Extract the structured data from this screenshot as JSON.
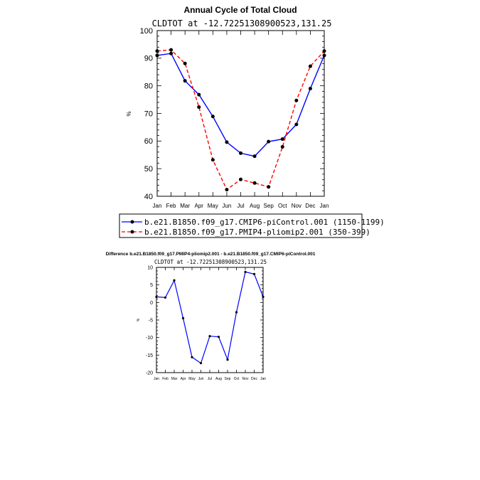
{
  "chart_data": [
    {
      "type": "line",
      "title": "Annual Cycle of Total Cloud",
      "subtitle": "CLDTOT at -12.72251308900523,131.25",
      "xlabel": "",
      "ylabel": "%",
      "categories": [
        "Jan",
        "Feb",
        "Mar",
        "Apr",
        "May",
        "Jun",
        "Jul",
        "Aug",
        "Sep",
        "Oct",
        "Nov",
        "Dec",
        "Jan"
      ],
      "ylim": [
        40,
        100
      ],
      "yticks": [
        40,
        50,
        60,
        70,
        80,
        90,
        100
      ],
      "series": [
        {
          "name": "b.e21.B1850.f09_g17.CMIP6-piControl.001 (1150-1199)",
          "color": "#0000ff",
          "dash": "solid",
          "values": [
            91.0,
            91.7,
            81.8,
            76.8,
            68.9,
            59.6,
            55.6,
            54.5,
            59.8,
            60.7,
            66.0,
            79.0,
            91.0
          ]
        },
        {
          "name": "b.e21.B1850.f09_g17.PMIP4-pliomip2.001 (350-399)",
          "color": "#ff0000",
          "dash": "dashed",
          "values": [
            92.6,
            93.0,
            88.1,
            72.3,
            53.2,
            42.4,
            46.1,
            44.8,
            43.4,
            57.9,
            74.7,
            87.1,
            92.6
          ]
        }
      ]
    },
    {
      "type": "line",
      "title": "Difference b.e21.B1850.f09_g17.PMIP4-pliomip2.001 - b.e21.B1850.f09_g17.CMIP6-piControl.001",
      "subtitle": "CLDTOT at -12.72251308900523,131.25",
      "xlabel": "",
      "ylabel": "%",
      "categories": [
        "Jan",
        "Feb",
        "Mar",
        "Apr",
        "May",
        "Jun",
        "Jul",
        "Aug",
        "Sep",
        "Oct",
        "Nov",
        "Dec",
        "Jan"
      ],
      "ylim": [
        -20,
        10
      ],
      "yticks": [
        -20,
        -15,
        -10,
        -5,
        0,
        5,
        10
      ],
      "series": [
        {
          "name": "Difference",
          "color": "#0000ff",
          "dash": "solid",
          "values": [
            1.6,
            1.4,
            6.3,
            -4.5,
            -15.6,
            -17.3,
            -9.6,
            -9.8,
            -16.3,
            -2.8,
            8.7,
            8.1,
            1.6
          ]
        }
      ]
    }
  ]
}
